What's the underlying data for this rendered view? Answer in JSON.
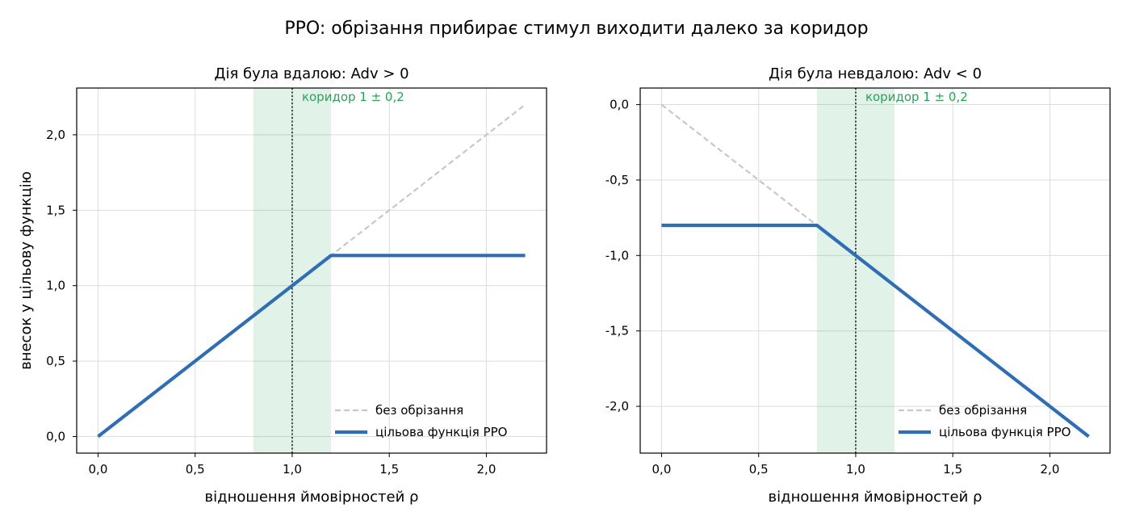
{
  "figure": {
    "suptitle": "PPO: обрізання прибирає стимул виходити далеко за коридор"
  },
  "colors": {
    "clipped": "#2f6db5",
    "unclipped": "#c8c8c8",
    "corridor_fill": "#2ca05a",
    "corridor_text": "#2ca05a",
    "ratio_line": "#000000",
    "grid": "#dcdcdc"
  },
  "chart_data": [
    {
      "type": "line",
      "title": "Дія була вдалою: Adv > 0",
      "xlabel": "відношення ймовірностей ρ",
      "ylabel": "внесок у цільову функцію",
      "xlim": [
        -0.11,
        2.31
      ],
      "ylim": [
        -0.11,
        2.31
      ],
      "xticks": [
        0,
        0.5,
        1,
        1.5,
        2
      ],
      "xtick_labels": [
        "0,0",
        "0,5",
        "1,0",
        "1,5",
        "2,0"
      ],
      "yticks": [
        0,
        0.5,
        1,
        1.5,
        2
      ],
      "ytick_labels": [
        "0,0",
        "0,5",
        "1,0",
        "1,5",
        "2,0"
      ],
      "grid": true,
      "legend_position": "lower-right",
      "corridor": {
        "x_from": 0.8,
        "x_to": 1.2,
        "label": "коридор 1 ± 0,2"
      },
      "vline_x": 1.0,
      "series": [
        {
          "name": "без обрізання",
          "style": "dashed",
          "x": [
            0,
            2.2
          ],
          "y": [
            0,
            2.2
          ]
        },
        {
          "name": "цільова функція PPO",
          "style": "solid",
          "x": [
            0,
            1.2,
            2.2
          ],
          "y": [
            0,
            1.2,
            1.2
          ]
        }
      ]
    },
    {
      "type": "line",
      "title": "Дія була невдалою: Adv < 0",
      "xlabel": "відношення ймовірностей ρ",
      "ylabel": "",
      "xlim": [
        -0.11,
        2.31
      ],
      "ylim": [
        -2.31,
        0.11
      ],
      "xticks": [
        0,
        0.5,
        1,
        1.5,
        2
      ],
      "xtick_labels": [
        "0,0",
        "0,5",
        "1,0",
        "1,5",
        "2,0"
      ],
      "yticks": [
        0,
        -0.5,
        -1,
        -1.5,
        -2
      ],
      "ytick_labels": [
        "0,0",
        "-0,5",
        "-1,0",
        "-1,5",
        "-2,0"
      ],
      "grid": true,
      "legend_position": "lower-right",
      "corridor": {
        "x_from": 0.8,
        "x_to": 1.2,
        "label": "коридор 1 ± 0,2"
      },
      "vline_x": 1.0,
      "series": [
        {
          "name": "без обрізання",
          "style": "dashed",
          "x": [
            0,
            2.2
          ],
          "y": [
            0,
            -2.2
          ]
        },
        {
          "name": "цільова функція PPO",
          "style": "solid",
          "x": [
            0,
            0.8,
            2.2
          ],
          "y": [
            -0.8,
            -0.8,
            -2.2
          ]
        }
      ]
    }
  ]
}
